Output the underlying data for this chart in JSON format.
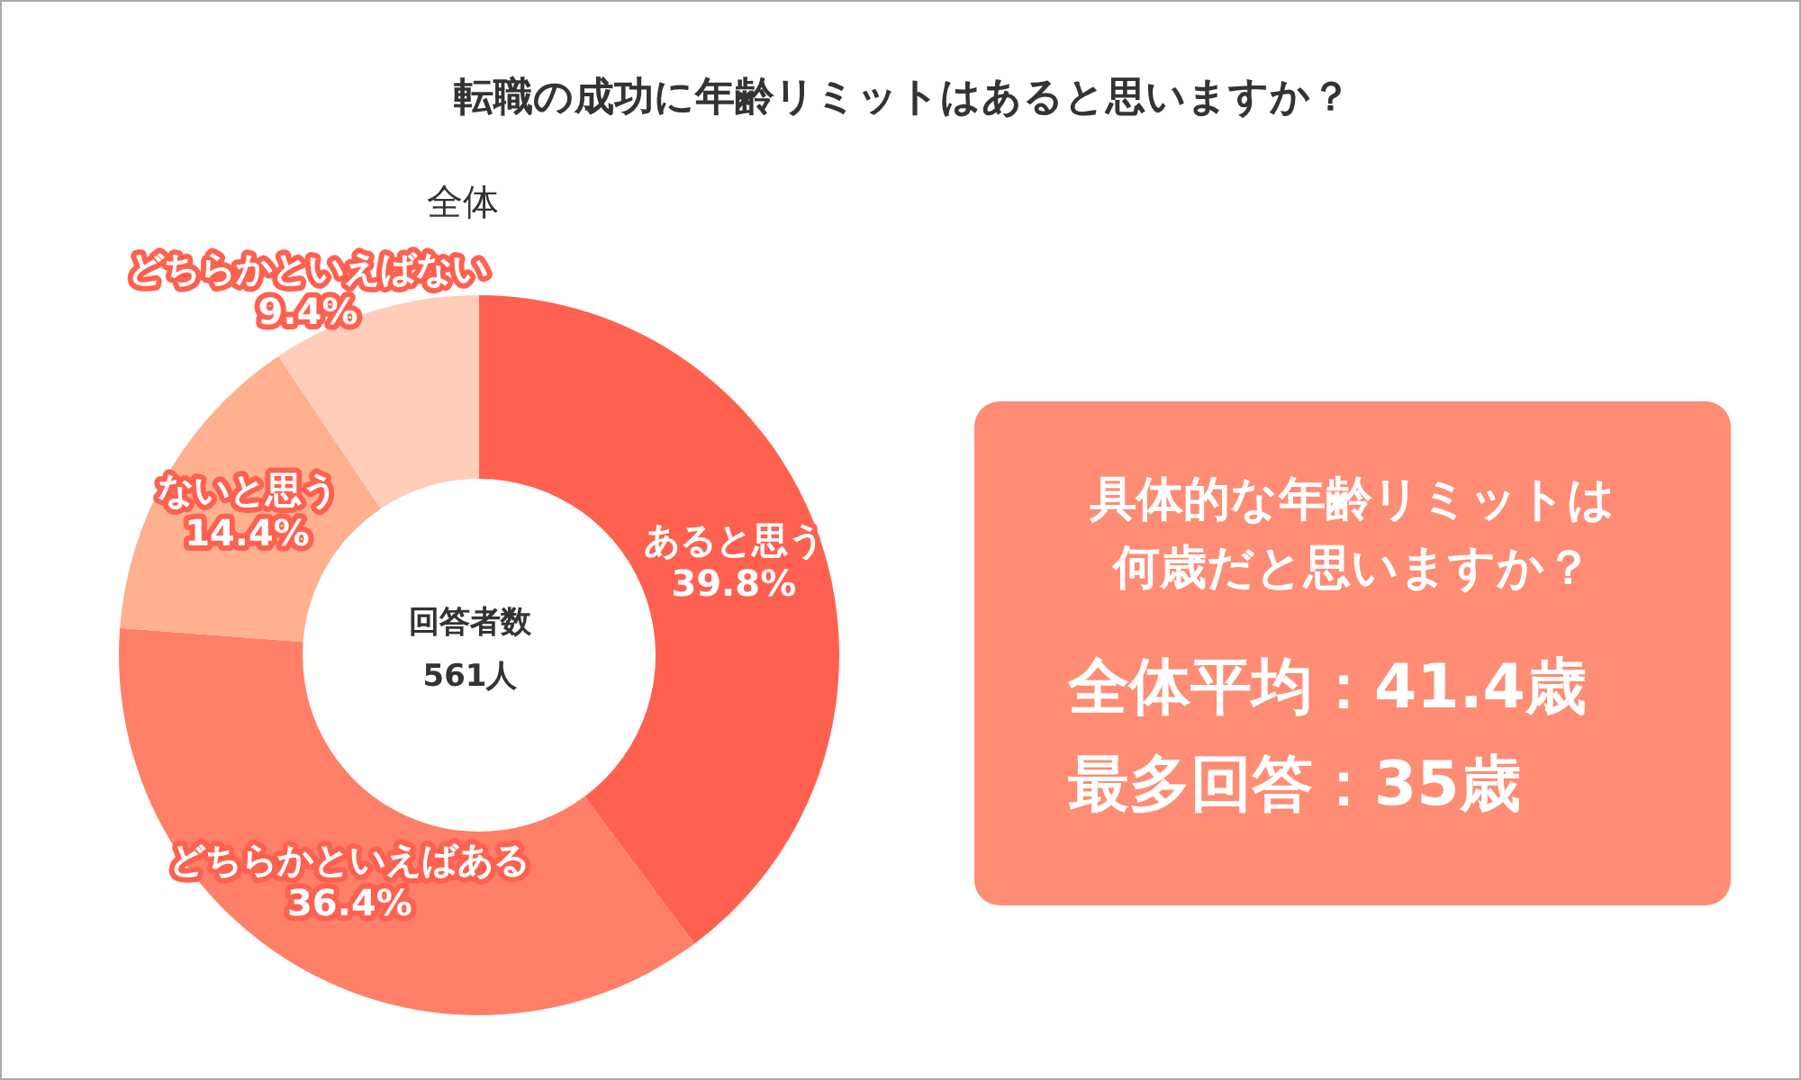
{
  "chart_data": [
    {
      "type": "donut",
      "title": "転職の成功に年齢リミットはあると思いますか？",
      "subtitle": "全体",
      "categories": [
        "あると思う",
        "どちらかといえばある",
        "ないと思う",
        "どちらかといえばない"
      ],
      "values": [
        39.8,
        36.4,
        14.4,
        9.4
      ],
      "value_labels": [
        "39.8%",
        "36.4%",
        "14.4%",
        "9.4%"
      ],
      "colors": [
        "#ff6150",
        "#ff7f68",
        "#ffb08f",
        "#ffcdb8"
      ],
      "annotations": [
        "回答者数",
        "561人"
      ]
    },
    {
      "type": "other",
      "title": "具体的な年齢リミットは何歳だと思いますか？",
      "annotations": [
        "全体平均：41.4歳",
        "最多回答：35歳"
      ]
    }
  ]
}
